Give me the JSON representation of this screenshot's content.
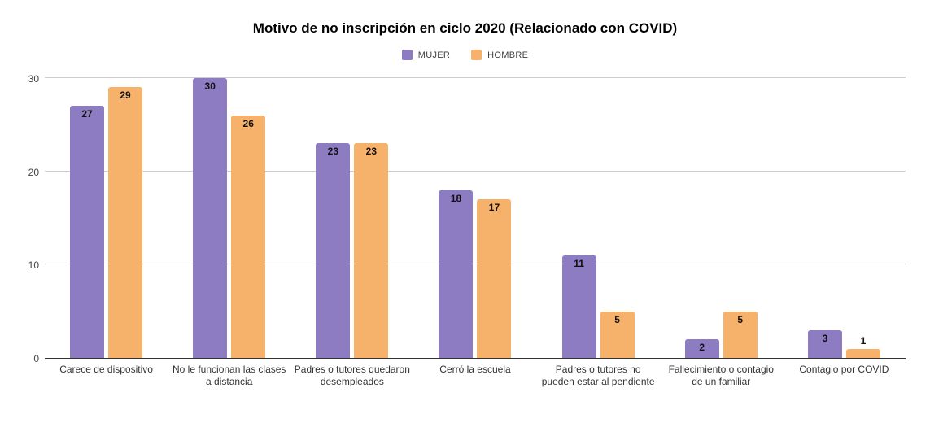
{
  "chart_data": {
    "type": "bar",
    "title": "Motivo de no inscripción en ciclo 2020 (Relacionado con COVID)",
    "categories": [
      "Carece de dispositivo",
      "No le funcionan las clases a distancia",
      "Padres o tutores quedaron desempleados",
      "Cerró la escuela",
      "Padres o tutores no pueden estar al pendiente",
      "Fallecimiento o contagio de un familiar",
      "Contagio por COVID"
    ],
    "series": [
      {
        "name": "MUJER",
        "color": "#8e7cc3",
        "values": [
          27,
          30,
          23,
          18,
          11,
          2,
          3
        ]
      },
      {
        "name": "HOMBRE",
        "color": "#f6b26b",
        "values": [
          29,
          26,
          23,
          17,
          5,
          5,
          1
        ]
      }
    ],
    "ylim": [
      0,
      30
    ],
    "yticks": [
      0,
      10,
      20,
      30
    ],
    "grid": true,
    "legend_position": "top",
    "value_labels": true,
    "colors": {
      "mujer": "#8e7cc3",
      "hombre": "#f6b26b",
      "gridline": "#cccccc",
      "axis_line": "#333333",
      "title_text": "#000000",
      "value_label_text": "#111111"
    }
  }
}
